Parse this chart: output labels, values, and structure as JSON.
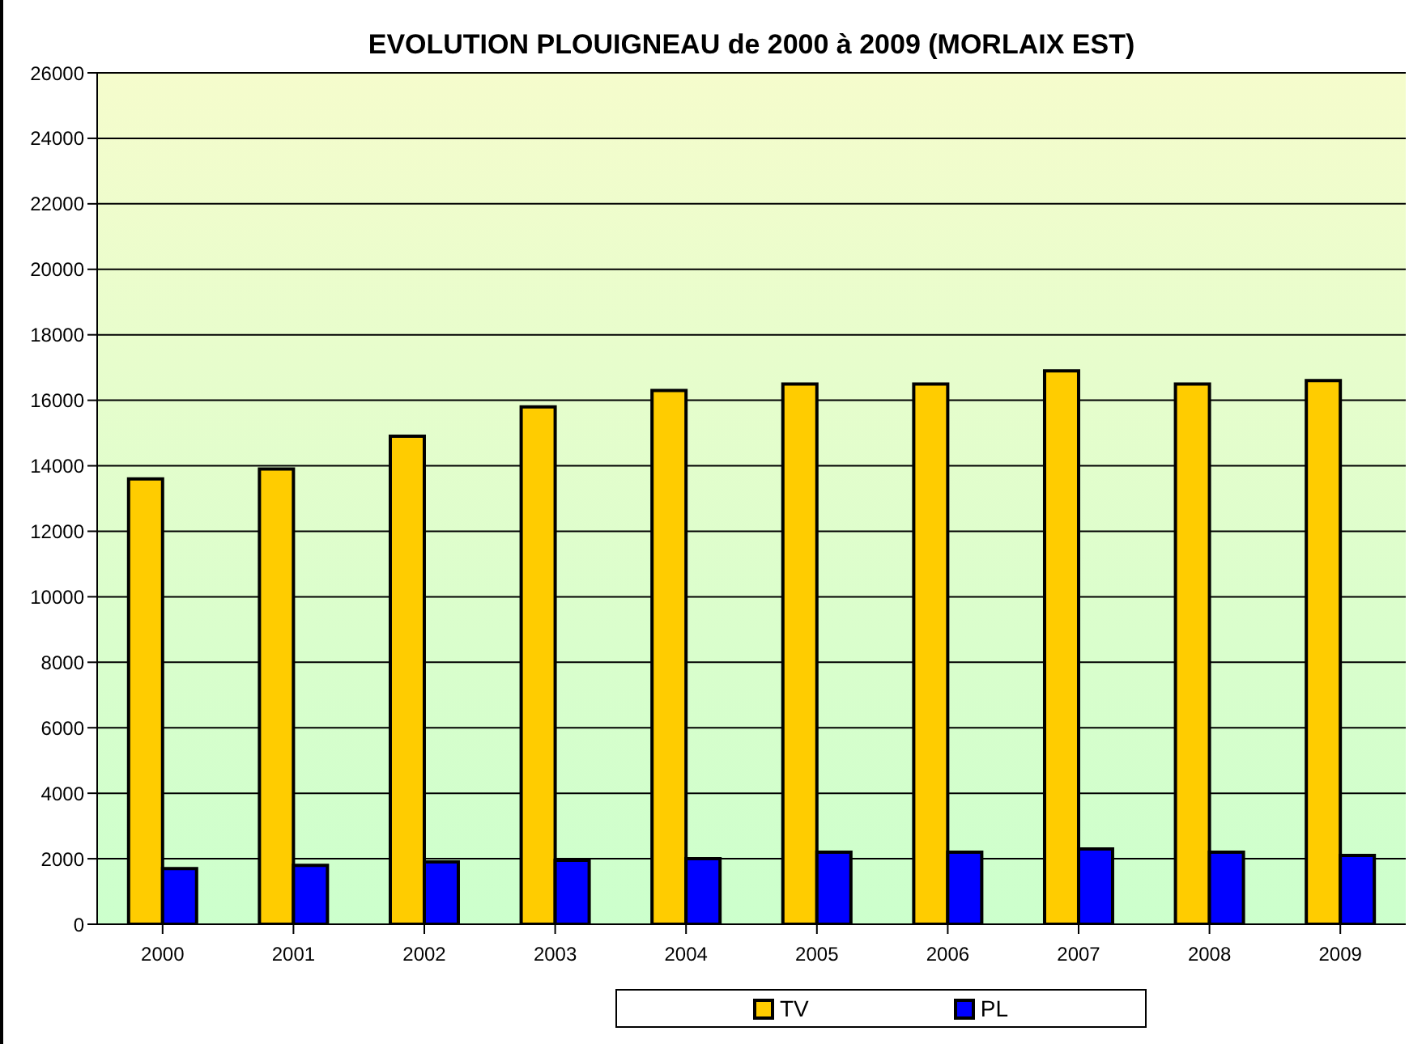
{
  "chart_data": {
    "type": "bar",
    "title": "EVOLUTION PLOUIGNEAU de 2000 à 2009 (MORLAIX EST)",
    "categories": [
      "2000",
      "2001",
      "2002",
      "2003",
      "2004",
      "2005",
      "2006",
      "2007",
      "2008",
      "2009"
    ],
    "series": [
      {
        "name": "TV",
        "color": "#ffcc00",
        "values": [
          13600,
          13900,
          14900,
          15800,
          16300,
          16500,
          16500,
          16900,
          16500,
          16600
        ]
      },
      {
        "name": "PL",
        "color": "#0000ff",
        "values": [
          1700,
          1800,
          1900,
          1950,
          2000,
          2200,
          2200,
          2300,
          2200,
          2100
        ]
      }
    ],
    "ylim": [
      0,
      26000
    ],
    "yticks": [
      0,
      2000,
      4000,
      6000,
      8000,
      10000,
      12000,
      14000,
      16000,
      18000,
      20000,
      22000,
      24000,
      26000
    ],
    "grid": "y",
    "legend": "bottom"
  }
}
